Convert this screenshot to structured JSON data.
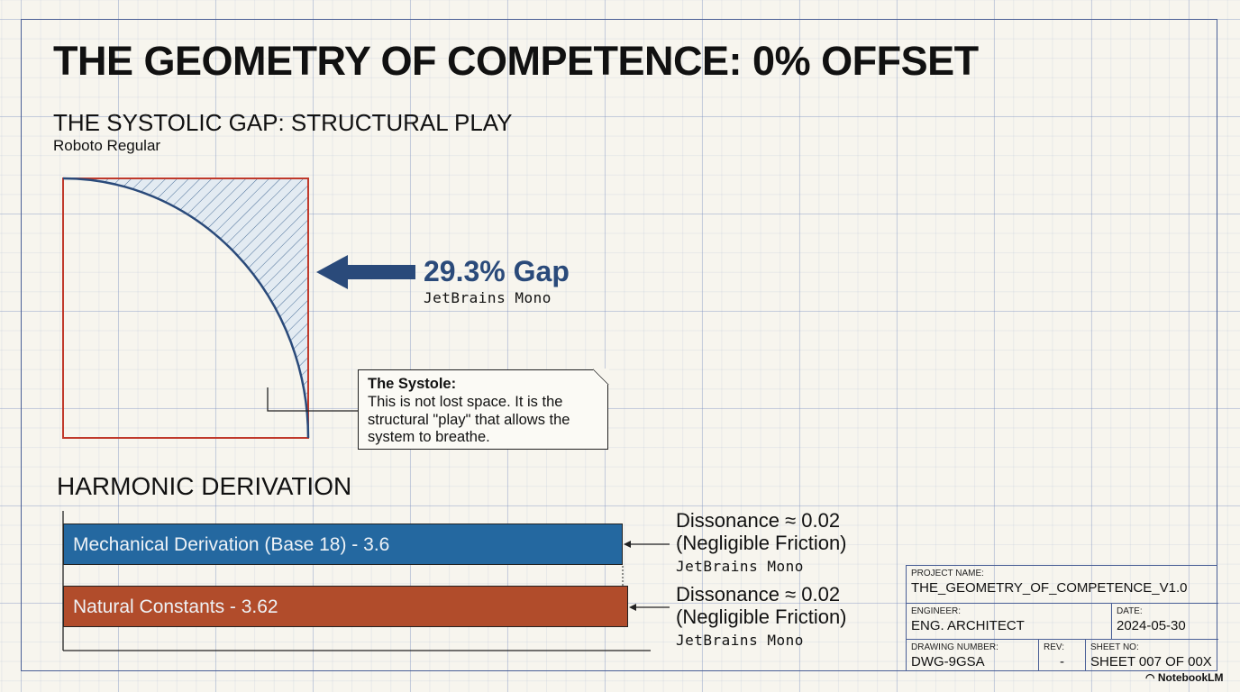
{
  "title": "THE GEOMETRY OF COMPETENCE: 0% OFFSET",
  "systolic": {
    "heading": "THE SYSTOLIC GAP: STRUCTURAL PLAY",
    "font_label": "Roboto Regular",
    "gap_value": "29.3% Gap",
    "gap_font": "JetBrains Mono",
    "note_title": "The Systole:",
    "note_body": "This is not lost space. It is the structural \"play\" that allows the system to breathe."
  },
  "harmonic": {
    "heading": "HARMONIC DERIVATION",
    "bars": [
      {
        "label": "Mechanical Derivation (Base 18) - 3.6",
        "value": 3.6,
        "color": "#2468a0",
        "dissonance": "Dissonance ≈ 0.02",
        "friction": "(Negligible Friction)",
        "font": "JetBrains Mono"
      },
      {
        "label": "Natural Constants - 3.62",
        "value": 3.62,
        "color": "#b14c2b",
        "dissonance": "Dissonance ≈ 0.02",
        "friction": "(Negligible Friction)",
        "font": "JetBrains Mono"
      }
    ]
  },
  "title_block": {
    "project_label": "PROJECT NAME:",
    "project": "THE_GEOMETRY_OF_COMPETENCE_V1.0",
    "engineer_label": "ENGINEER:",
    "engineer": "ENG. ARCHITECT",
    "date_label": "DATE:",
    "date": "2024-05-30",
    "drawing_label": "DRAWING NUMBER:",
    "drawing": "DWG-9GSA",
    "rev_label": "REV:",
    "rev": "-",
    "sheet_label": "SHEET NO:",
    "sheet": "SHEET 007 OF 00X"
  },
  "brand": "NotebookLM"
}
